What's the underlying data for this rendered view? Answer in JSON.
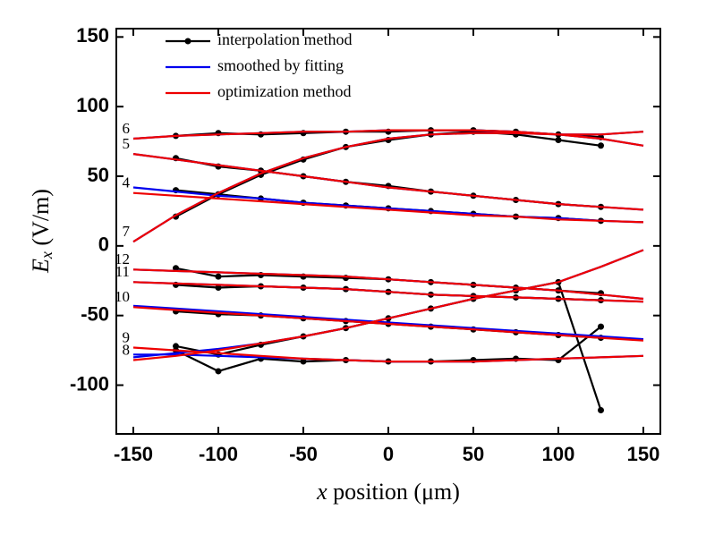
{
  "chart_data": {
    "type": "line",
    "x_label": [
      "x",
      " position (μm)"
    ],
    "y_label": [
      "E",
      "x",
      " (V/m)"
    ],
    "x": [
      -150,
      -125,
      -100,
      -75,
      -50,
      -25,
      0,
      25,
      50,
      75,
      100,
      125,
      150
    ],
    "xlim": [
      -160,
      160
    ],
    "xticks": [
      -150,
      -100,
      -50,
      0,
      50,
      100,
      150
    ],
    "ylim": [
      -135,
      156
    ],
    "yticks": [
      -100,
      -50,
      0,
      50,
      100,
      150
    ],
    "curve_labels": [
      "6",
      "5",
      "4",
      "7",
      "12",
      "11",
      "10",
      "9",
      "8"
    ],
    "legend": "upper left",
    "series": [
      {
        "name": "interpolation method",
        "color": "#000000",
        "markers": true,
        "values": [
          [
            null,
            79,
            81,
            80,
            81,
            82,
            82,
            83,
            83,
            82,
            80,
            78,
            null
          ],
          [
            null,
            63,
            57,
            54,
            50,
            46,
            43,
            39,
            36,
            33,
            30,
            28,
            null
          ],
          [
            null,
            40,
            37,
            34,
            31,
            29,
            27,
            25,
            23,
            21,
            20,
            18,
            null
          ],
          [
            null,
            21,
            37,
            51,
            62,
            71,
            76,
            80,
            82,
            80,
            76,
            72,
            null
          ],
          [
            null,
            -16,
            -22,
            -21,
            -22,
            -23,
            -24,
            -26,
            -28,
            -30,
            -32,
            -34,
            null
          ],
          [
            null,
            -28,
            -30,
            -29,
            -30,
            -31,
            -33,
            -35,
            -36,
            -37,
            -38,
            -39,
            null
          ],
          [
            null,
            -47,
            -49,
            -50,
            -52,
            -54,
            -56,
            -58,
            -60,
            -62,
            -64,
            -66,
            null
          ],
          [
            null,
            -75,
            -90,
            -81,
            -83,
            -82,
            -83,
            -83,
            -82,
            -81,
            -82,
            -58,
            null
          ],
          [
            null,
            -72,
            -78,
            -71,
            -65,
            -59,
            -52,
            -45,
            -38,
            -32,
            -26,
            -118,
            null
          ]
        ]
      },
      {
        "name": "smoothed by fitting",
        "color": "#0000ee",
        "markers": false,
        "values": [
          [
            77,
            79,
            80,
            81,
            82,
            82,
            83,
            83,
            83,
            82,
            80,
            77,
            72
          ],
          [
            66,
            62,
            58,
            54,
            50,
            46,
            42,
            39,
            36,
            33,
            30,
            28,
            26
          ],
          [
            42,
            39,
            36,
            34,
            31,
            29,
            27,
            25,
            23,
            21,
            20,
            18,
            17
          ],
          [
            3,
            22,
            38,
            52,
            63,
            71,
            77,
            80,
            81,
            81,
            80,
            80,
            82
          ],
          [
            -17,
            -18,
            -19,
            -20,
            -21,
            -22,
            -24,
            -26,
            -28,
            -30,
            -32,
            -35,
            -38
          ],
          [
            -26,
            -27,
            -28,
            -29,
            -30,
            -31,
            -33,
            -35,
            -36,
            -37,
            -38,
            -39,
            -40
          ],
          [
            -43,
            -45,
            -47,
            -49,
            -51,
            -53,
            -55,
            -57,
            -59,
            -61,
            -63,
            -65,
            -67
          ],
          [
            -78,
            -78,
            -79,
            -80,
            -81,
            -82,
            -83,
            -83,
            -83,
            -82,
            -81,
            -80,
            -79
          ],
          [
            -80,
            -77,
            -74,
            -70,
            -65,
            -59,
            -52,
            -45,
            -38,
            -32,
            -26,
            -15,
            -3
          ]
        ]
      },
      {
        "name": "optimization method",
        "color": "#ee0000",
        "markers": false,
        "values": [
          [
            77,
            79,
            80,
            81,
            82,
            82,
            83,
            83,
            83,
            82,
            80,
            77,
            72
          ],
          [
            66,
            62,
            58,
            54,
            50,
            46,
            42,
            39,
            36,
            33,
            30,
            28,
            26
          ],
          [
            38,
            36,
            34,
            32,
            30,
            28,
            26,
            24,
            22,
            21,
            19,
            18,
            17
          ],
          [
            3,
            22,
            38,
            52,
            63,
            71,
            77,
            80,
            81,
            81,
            80,
            80,
            82
          ],
          [
            -17,
            -18,
            -19,
            -20,
            -21,
            -22,
            -24,
            -26,
            -28,
            -30,
            -32,
            -35,
            -38
          ],
          [
            -26,
            -27,
            -28,
            -29,
            -30,
            -31,
            -33,
            -35,
            -36,
            -37,
            -38,
            -39,
            -40
          ],
          [
            -44,
            -46,
            -48,
            -50,
            -52,
            -54,
            -56,
            -58,
            -60,
            -62,
            -64,
            -66,
            -68
          ],
          [
            -73,
            -75,
            -77,
            -79,
            -81,
            -82,
            -83,
            -83,
            -83,
            -82,
            -81,
            -80,
            -79
          ],
          [
            -82,
            -79,
            -75,
            -70,
            -65,
            -59,
            -52,
            -45,
            -38,
            -32,
            -26,
            -15,
            -3
          ]
        ]
      }
    ]
  }
}
